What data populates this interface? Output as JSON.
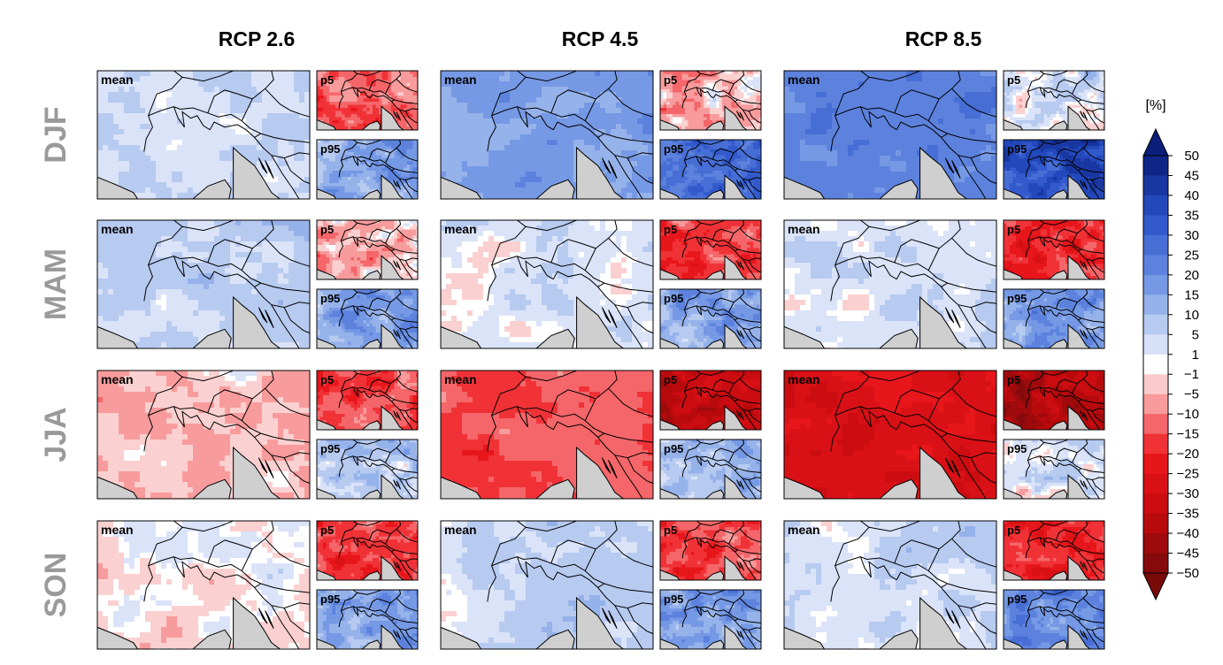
{
  "chart_data": {
    "type": "heatmap",
    "title": "",
    "columns": [
      "RCP 2.6",
      "RCP 4.5",
      "RCP 8.5"
    ],
    "rows": [
      "DJF",
      "MAM",
      "JJA",
      "SON"
    ],
    "panel_labels": {
      "mean": "mean",
      "p5": "p5",
      "p95": "p95"
    },
    "colorbar": {
      "unit": "[%]",
      "tick_labels": [
        "50",
        "45",
        "40",
        "35",
        "30",
        "25",
        "20",
        "15",
        "10",
        "5",
        "1",
        "−1",
        "−5",
        "−10",
        "−15",
        "−20",
        "−25",
        "−30",
        "−35",
        "−40",
        "−45",
        "−50"
      ],
      "range": [
        -50,
        50
      ],
      "low_color": "#7a0a0a",
      "mid_color": "#ffffff",
      "high_color": "#0a1e7a"
    },
    "panels": [
      {
        "row": "DJF",
        "column": "RCP 2.6",
        "mean": 5,
        "p5": -12,
        "p95": 15
      },
      {
        "row": "DJF",
        "column": "RCP 4.5",
        "mean": 16,
        "p5": -4,
        "p95": 28
      },
      {
        "row": "DJF",
        "column": "RCP 8.5",
        "mean": 22,
        "p5": 3,
        "p95": 36
      },
      {
        "row": "MAM",
        "column": "RCP 2.6",
        "mean": 6,
        "p5": -6,
        "p95": 16
      },
      {
        "row": "MAM",
        "column": "RCP 4.5",
        "mean": 3,
        "p5": -16,
        "p95": 15
      },
      {
        "row": "MAM",
        "column": "RCP 8.5",
        "mean": 4,
        "p5": -20,
        "p95": 18
      },
      {
        "row": "JJA",
        "column": "RCP 2.6",
        "mean": -4,
        "p5": -17,
        "p95": 8
      },
      {
        "row": "JJA",
        "column": "RCP 4.5",
        "mean": -15,
        "p5": -33,
        "p95": 10
      },
      {
        "row": "JJA",
        "column": "RCP 8.5",
        "mean": -27,
        "p5": -38,
        "p95": 2
      },
      {
        "row": "SON",
        "column": "RCP 2.6",
        "mean": -1,
        "p5": -16,
        "p95": 16
      },
      {
        "row": "SON",
        "column": "RCP 4.5",
        "mean": 6,
        "p5": -16,
        "p95": 17
      },
      {
        "row": "SON",
        "column": "RCP 8.5",
        "mean": 4,
        "p5": -20,
        "p95": 22
      }
    ]
  }
}
